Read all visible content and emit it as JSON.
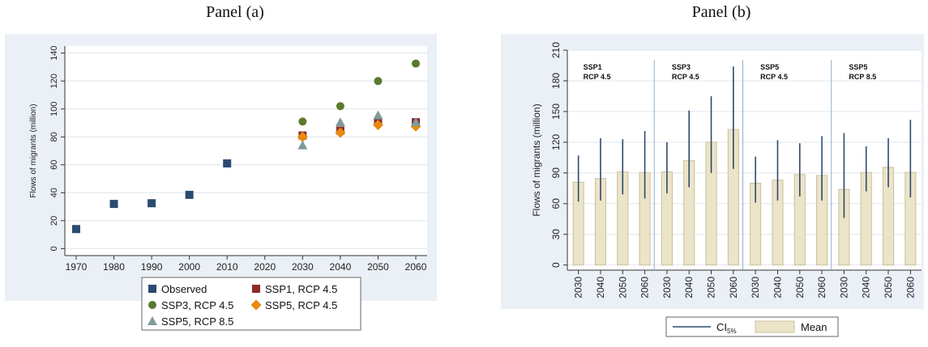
{
  "panel_a": {
    "title": "Panel (a)",
    "colors": {
      "observed": "#2b4a6f",
      "ssp1_45": "#8b2c2c",
      "ssp3_45": "#5a7a2e",
      "ssp5_45": "#e98a0f",
      "ssp5_85": "#7f9a9a",
      "panel_bg": "#eaf0f6"
    }
  },
  "panel_b": {
    "title": "Panel (b)",
    "colors": {
      "bar_fill": "#ece4c8",
      "bar_stroke": "#c9bf9c",
      "ci": "#2e4a6b",
      "divider": "#8fb0cc",
      "panel_bg": "#eaf0f6"
    }
  },
  "chart_data": [
    {
      "type": "scatter",
      "title": "Panel (a)",
      "ylabel": "Flows of migrants (million)",
      "xlabel": "",
      "xlim": [
        1967,
        2063
      ],
      "ylim": [
        -5,
        145
      ],
      "xticks": [
        1970,
        1980,
        1990,
        2000,
        2010,
        2020,
        2030,
        2040,
        2050,
        2060
      ],
      "yticks": [
        0,
        20,
        40,
        60,
        80,
        100,
        120,
        140
      ],
      "grid": true,
      "legend_position": "bottom",
      "series": [
        {
          "name": "Observed",
          "marker": "square",
          "color": "#2b4a6f",
          "x": [
            1970,
            1980,
            1990,
            2000,
            2010
          ],
          "y": [
            14,
            32,
            32.5,
            38.5,
            61
          ]
        },
        {
          "name": "SSP1, RCP 4.5",
          "marker": "square",
          "color": "#8b2c2c",
          "x": [
            2030,
            2040,
            2050,
            2060
          ],
          "y": [
            81,
            84.5,
            91,
            90.5
          ]
        },
        {
          "name": "SSP3, RCP 4.5",
          "marker": "circle",
          "color": "#5a7a2e",
          "x": [
            2030,
            2040,
            2050,
            2060
          ],
          "y": [
            91,
            102,
            120,
            132.5
          ]
        },
        {
          "name": "SSP5, RCP 4.5",
          "marker": "diamond",
          "color": "#e98a0f",
          "x": [
            2030,
            2040,
            2050,
            2060
          ],
          "y": [
            80,
            83,
            88.5,
            87.5
          ]
        },
        {
          "name": "SSP5, RCP 8.5",
          "marker": "triangle",
          "color": "#7f9a9a",
          "x": [
            2030,
            2040,
            2050,
            2060
          ],
          "y": [
            74,
            90.5,
            95.5,
            90.5
          ]
        }
      ]
    },
    {
      "type": "bar",
      "title": "Panel (b)",
      "ylabel": "Flows of migrants (million)",
      "xlabel": "",
      "ylim": [
        -5,
        210
      ],
      "yticks": [
        0,
        30,
        60,
        90,
        120,
        150,
        180,
        210
      ],
      "grid": true,
      "legend_position": "bottom",
      "legend": [
        "CI5%",
        "Mean"
      ],
      "legend_ci_main": "CI",
      "legend_ci_sub": "5%",
      "legend_mean": "Mean",
      "groups": [
        {
          "label_line1": "SSP1",
          "label_line2": "RCP 4.5",
          "categories": [
            "2030",
            "2040",
            "2050",
            "2060"
          ],
          "mean": [
            81,
            84.5,
            91,
            90.5
          ],
          "ci_low": [
            62,
            63,
            69,
            65
          ],
          "ci_high": [
            107,
            124,
            123,
            131
          ]
        },
        {
          "label_line1": "SSP3",
          "label_line2": "RCP 4.5",
          "categories": [
            "2030",
            "2040",
            "2050",
            "2060"
          ],
          "mean": [
            91,
            102,
            120,
            132.5
          ],
          "ci_low": [
            70,
            76,
            90,
            94
          ],
          "ci_high": [
            120,
            151,
            165,
            194
          ]
        },
        {
          "label_line1": "SSP5",
          "label_line2": "RCP 4.5",
          "categories": [
            "2030",
            "2040",
            "2050",
            "2060"
          ],
          "mean": [
            80,
            83,
            88.5,
            87.5
          ],
          "ci_low": [
            61,
            63,
            67,
            63
          ],
          "ci_high": [
            106,
            122,
            119,
            126
          ]
        },
        {
          "label_line1": "SSP5",
          "label_line2": "RCP 8.5",
          "categories": [
            "2030",
            "2040",
            "2050",
            "2060"
          ],
          "mean": [
            74,
            90.5,
            95.5,
            90.5
          ],
          "ci_low": [
            46,
            72,
            76,
            66
          ],
          "ci_high": [
            129,
            116,
            124,
            142
          ]
        }
      ]
    }
  ]
}
